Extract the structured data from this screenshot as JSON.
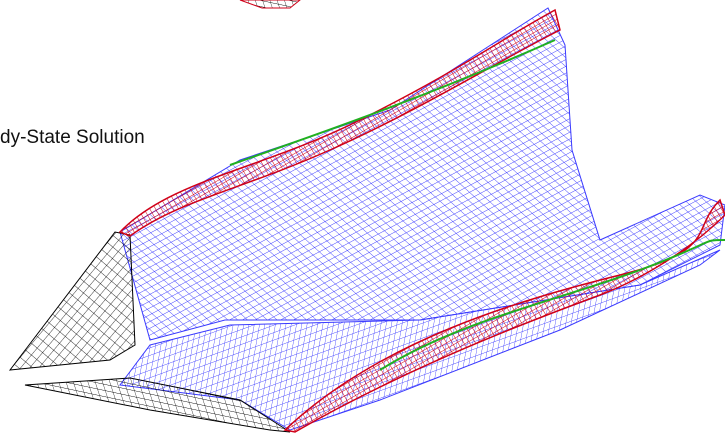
{
  "label": "dy-State Solution"
}
